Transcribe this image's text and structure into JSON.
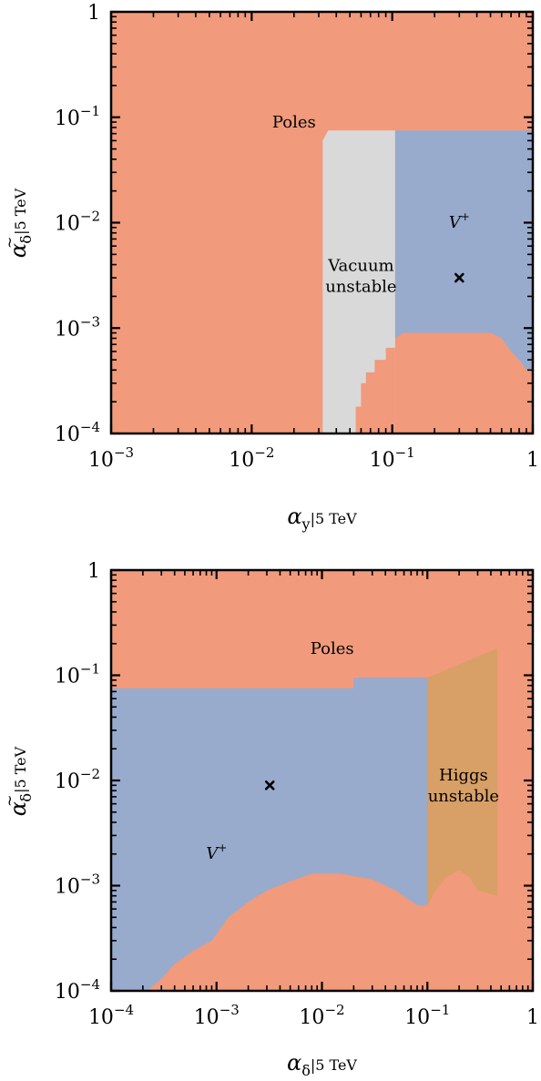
{
  "colors": {
    "poles": "#f19a7c",
    "vplus": "#98abcd",
    "vacuum": "#d9d9d9",
    "higgs": "#d8a066",
    "higgs_edge": "#f0c070"
  },
  "chart_data": [
    {
      "type": "heatmap",
      "scale": "log-log",
      "xlim": [
        0.001,
        1
      ],
      "ylim": [
        0.0001,
        1
      ],
      "x_ticks": [
        {
          "value": 0.001,
          "base": "10",
          "exp": "−3"
        },
        {
          "value": 0.01,
          "base": "10",
          "exp": "−2"
        },
        {
          "value": 0.1,
          "base": "10",
          "exp": "−1"
        },
        {
          "value": 1,
          "base": "1",
          "exp": ""
        }
      ],
      "y_ticks": [
        {
          "value": 0.0001,
          "base": "10",
          "exp": "−4"
        },
        {
          "value": 0.001,
          "base": "10",
          "exp": "−3"
        },
        {
          "value": 0.01,
          "base": "10",
          "exp": "−2"
        },
        {
          "value": 0.1,
          "base": "10",
          "exp": "−1"
        },
        {
          "value": 1,
          "base": "1",
          "exp": ""
        }
      ],
      "xlabel_main": "α",
      "xlabel_sub": "y",
      "xlabel_scale": "|5 TeV",
      "ylabel_main": "α",
      "ylabel_sub": "δ",
      "ylabel_sup": "~",
      "ylabel_scale": "|5 TeV",
      "regions": [
        {
          "name": "Poles",
          "label": "Poles",
          "label_at": [
            0.02,
            0.08
          ]
        },
        {
          "name": "Vacuum unstable",
          "label": "Vacuum unstable",
          "label_lines": [
            "Vacuum",
            "unstable"
          ],
          "label_at": [
            0.06,
            0.0035
          ]
        },
        {
          "name": "V+",
          "label": "V+",
          "label_at": [
            0.3,
            0.009
          ]
        }
      ],
      "vacuum_polygon": [
        [
          0.032,
          0.0001
        ],
        [
          0.032,
          0.06
        ],
        [
          0.035,
          0.075
        ],
        [
          0.105,
          0.075
        ],
        [
          0.105,
          0.0001
        ]
      ],
      "vplus_polygon": [
        [
          0.105,
          0.075
        ],
        [
          1,
          0.075
        ],
        [
          1,
          0.0004
        ],
        [
          0.9,
          0.0004
        ],
        [
          0.8,
          0.0005
        ],
        [
          0.7,
          0.0006
        ],
        [
          0.6,
          0.0008
        ],
        [
          0.5,
          0.0009
        ],
        [
          0.4,
          0.0009
        ],
        [
          0.25,
          0.0009
        ],
        [
          0.12,
          0.0009
        ],
        [
          0.105,
          0.0008
        ]
      ],
      "lower_poles_polygon": [
        [
          0.055,
          0.0001
        ],
        [
          0.055,
          0.00018
        ],
        [
          0.06,
          0.00018
        ],
        [
          0.06,
          0.0003
        ],
        [
          0.065,
          0.0003
        ],
        [
          0.065,
          0.00038
        ],
        [
          0.075,
          0.00038
        ],
        [
          0.075,
          0.0005
        ],
        [
          0.09,
          0.0005
        ],
        [
          0.09,
          0.00065
        ],
        [
          0.105,
          0.00065
        ],
        [
          0.105,
          0.0001
        ]
      ],
      "marker": {
        "x": 0.3,
        "y": 0.003,
        "symbol": "×"
      }
    },
    {
      "type": "heatmap",
      "scale": "log-log",
      "xlim": [
        0.0001,
        1
      ],
      "ylim": [
        0.0001,
        1
      ],
      "x_ticks": [
        {
          "value": 0.0001,
          "base": "10",
          "exp": "−4"
        },
        {
          "value": 0.001,
          "base": "10",
          "exp": "−3"
        },
        {
          "value": 0.01,
          "base": "10",
          "exp": "−2"
        },
        {
          "value": 0.1,
          "base": "10",
          "exp": "−1"
        },
        {
          "value": 1,
          "base": "1",
          "exp": ""
        }
      ],
      "y_ticks": [
        {
          "value": 0.0001,
          "base": "10",
          "exp": "−4"
        },
        {
          "value": 0.001,
          "base": "10",
          "exp": "−3"
        },
        {
          "value": 0.01,
          "base": "10",
          "exp": "−2"
        },
        {
          "value": 0.1,
          "base": "10",
          "exp": "−1"
        },
        {
          "value": 1,
          "base": "1",
          "exp": ""
        }
      ],
      "xlabel_main": "α",
      "xlabel_sub": "δ",
      "xlabel_scale": "|5 TeV",
      "ylabel_main": "α",
      "ylabel_sub": "δ",
      "ylabel_sup": "~",
      "ylabel_scale": "|5 TeV",
      "regions": [
        {
          "name": "Poles",
          "label": "Poles",
          "label_at": [
            0.0125,
            0.16
          ]
        },
        {
          "name": "Higgs unstable",
          "label": "Higgs unstable",
          "label_lines": [
            "Higgs",
            "unstable"
          ],
          "label_at": [
            0.22,
            0.01
          ]
        },
        {
          "name": "V+",
          "label": "V+",
          "label_at": [
            0.001,
            0.0018
          ]
        }
      ],
      "vplus_polygon": [
        [
          0.0001,
          0.075
        ],
        [
          0.0025,
          0.075
        ],
        [
          0.01,
          0.075
        ],
        [
          0.02,
          0.075
        ],
        [
          0.02,
          0.095
        ],
        [
          0.1,
          0.095
        ],
        [
          0.1,
          0.00065
        ],
        [
          0.08,
          0.00065
        ],
        [
          0.05,
          0.0009
        ],
        [
          0.03,
          0.00115
        ],
        [
          0.015,
          0.0013
        ],
        [
          0.008,
          0.0013
        ],
        [
          0.005,
          0.0011
        ],
        [
          0.003,
          0.0009
        ],
        [
          0.002,
          0.0007
        ],
        [
          0.0013,
          0.0005
        ],
        [
          0.0009,
          0.0003
        ],
        [
          0.0006,
          0.00024
        ],
        [
          0.0004,
          0.00018
        ],
        [
          0.0003,
          0.00013
        ],
        [
          0.00022,
          0.0001
        ],
        [
          0.0001,
          0.0001
        ]
      ],
      "higgs_polygon": [
        [
          0.1,
          0.095
        ],
        [
          0.46,
          0.18
        ],
        [
          0.46,
          0.0008
        ],
        [
          0.3,
          0.0009
        ],
        [
          0.25,
          0.0012
        ],
        [
          0.2,
          0.0014
        ],
        [
          0.15,
          0.0012
        ],
        [
          0.12,
          0.0009
        ],
        [
          0.1,
          0.00065
        ],
        [
          0.085,
          0.00065
        ],
        [
          0.085,
          0.095
        ]
      ],
      "higgs_edge_polygon": [
        [
          0.085,
          0.035
        ],
        [
          0.095,
          0.035
        ],
        [
          0.095,
          0.027
        ],
        [
          0.085,
          0.027
        ]
      ],
      "marker": {
        "x": 0.0032,
        "y": 0.009,
        "symbol": "×"
      }
    }
  ]
}
